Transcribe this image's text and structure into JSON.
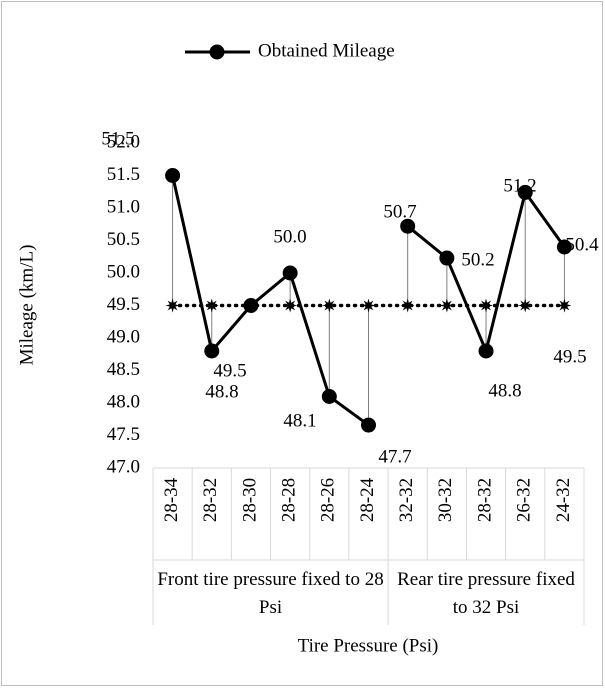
{
  "chart_data": {
    "type": "line",
    "y_label": "Mileage (km/L)",
    "x_label": "Tire Pressure (Psi)",
    "categories": [
      "28-34",
      "28-32",
      "28-30",
      "28-28",
      "28-26",
      "28-24",
      "32-32",
      "30-32",
      "28-32",
      "26-32",
      "24-32"
    ],
    "groups": [
      {
        "label": "Front tire pressure fixed to 28 Psi",
        "count": 6
      },
      {
        "label": "Rear tire pressure fixed to 32 Psi",
        "count": 5
      }
    ],
    "series": [
      {
        "name": "Obtained Mileage",
        "color": "#000000",
        "values": [
          51.5,
          48.8,
          49.5,
          50.0,
          48.1,
          47.66,
          50.72,
          50.23,
          48.8,
          51.24,
          50.4
        ],
        "value_labels": [
          "51.5",
          "48.8",
          "49.5",
          "50.0",
          "48.1",
          "47.7",
          "50.7",
          "50.2",
          "48.8",
          "51.2",
          "50.4"
        ]
      },
      {
        "color": "#000000",
        "line_style": "dotted",
        "values": [
          49.5,
          49.5,
          49.5,
          49.5,
          49.5,
          49.5,
          49.5,
          49.5,
          49.5,
          49.5,
          49.5
        ],
        "value_labels": [
          null,
          null,
          null,
          null,
          null,
          null,
          null,
          null,
          null,
          null,
          "49.5"
        ]
      }
    ],
    "ylim": [
      47.0,
      52.0
    ],
    "yticks": [
      {
        "value": 47.0,
        "label": "47.0"
      },
      47.5,
      {
        "value": 48.0,
        "label": "48.0"
      },
      48.5,
      {
        "value": 49.0,
        "label": "49.0"
      },
      49.5,
      {
        "value": 50.0,
        "label": "50.0"
      },
      50.5,
      {
        "value": 51.0,
        "label": "51.0"
      },
      51.5,
      {
        "value": 52.0,
        "label": "52.0"
      }
    ],
    "grid": false,
    "legend": "top"
  }
}
